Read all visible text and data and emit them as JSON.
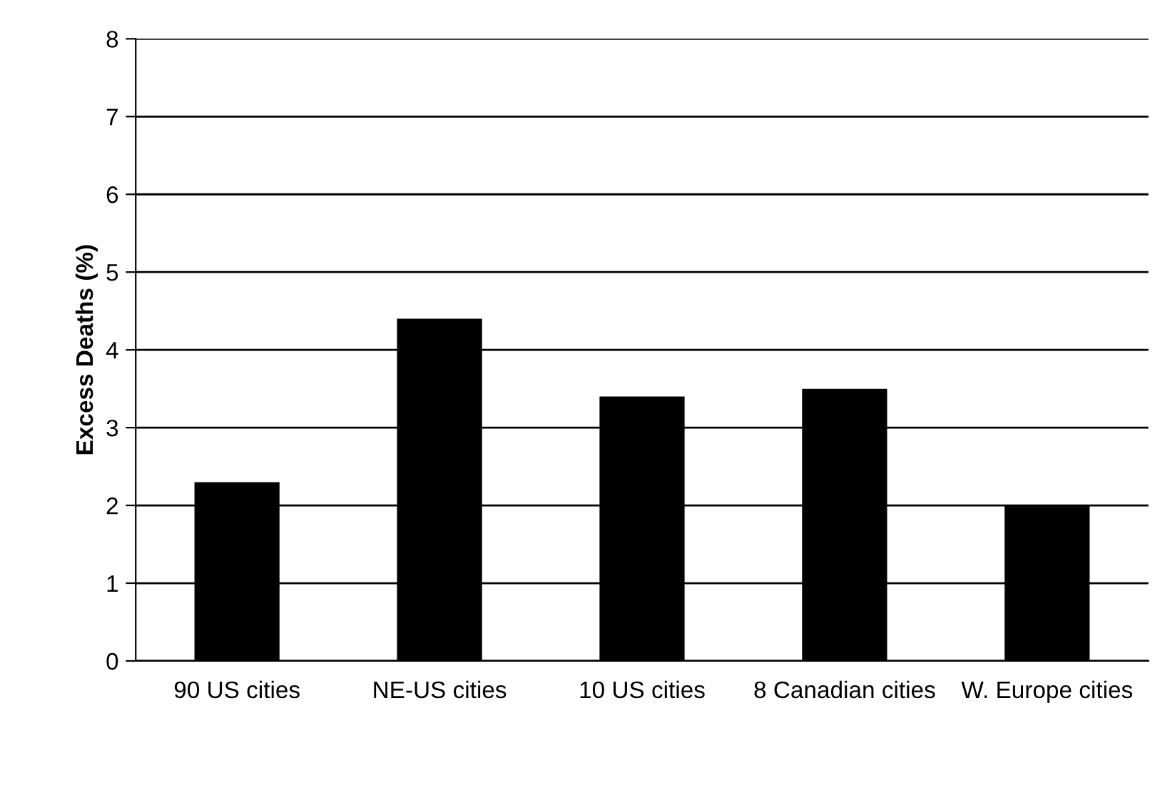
{
  "chart_data": {
    "type": "bar",
    "ylabel": "Excess Deaths (%)",
    "categories": [
      "90 US cities",
      "NE-US cities",
      "10 US cities",
      "8 Canadian cities",
      "W. Europe cities"
    ],
    "values": [
      2.3,
      4.4,
      3.4,
      3.5,
      2.0
    ],
    "color": "#000000",
    "ylim": [
      0,
      8
    ],
    "yticks": [
      0,
      1,
      2,
      3,
      4,
      5,
      6,
      7,
      8
    ],
    "grid": "y"
  }
}
